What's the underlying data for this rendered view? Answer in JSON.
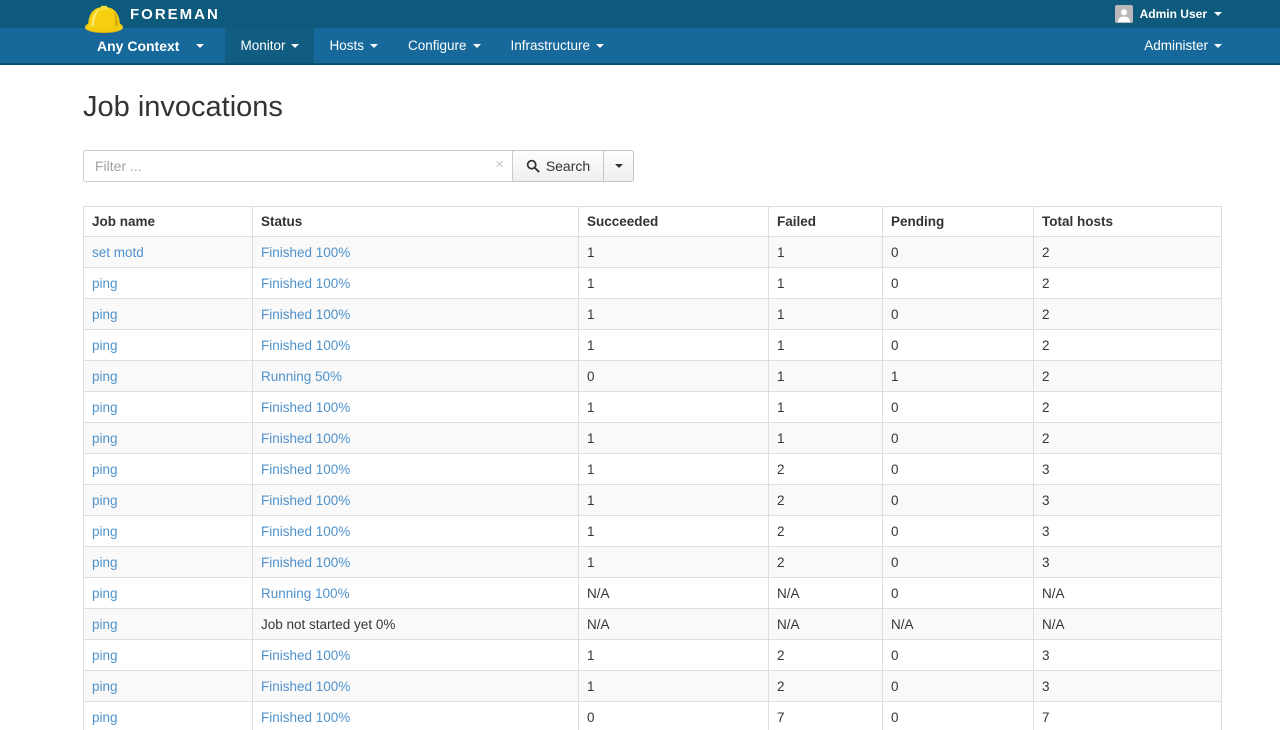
{
  "colors": {
    "topbar_bg": "#0d5a7d",
    "navbar_bg": "#17699b",
    "navbar_active_bg": "#115c81",
    "link_color": "#4f92cb",
    "logo_yellow": "#f6d00f"
  },
  "brand": {
    "name": "FOREMAN",
    "logo_icon": "hard-hat-icon"
  },
  "topbar": {
    "user_name": "Admin User"
  },
  "navbar": {
    "context_label": "Any Context",
    "items": [
      {
        "label": "Monitor",
        "active": true
      },
      {
        "label": "Hosts",
        "active": false
      },
      {
        "label": "Configure",
        "active": false
      },
      {
        "label": "Infrastructure",
        "active": false
      }
    ],
    "right_item": "Administer"
  },
  "page": {
    "title": "Job invocations"
  },
  "search": {
    "placeholder": "Filter ...",
    "button_label": "Search",
    "clear_icon": "×"
  },
  "table": {
    "columns": [
      "Job name",
      "Status",
      "Succeeded",
      "Failed",
      "Pending",
      "Total hosts"
    ],
    "rows": [
      {
        "job_name": "set motd",
        "status": "Finished 100%",
        "status_link": true,
        "succeeded": "1",
        "failed": "1",
        "pending": "0",
        "total_hosts": "2"
      },
      {
        "job_name": "ping",
        "status": "Finished 100%",
        "status_link": true,
        "succeeded": "1",
        "failed": "1",
        "pending": "0",
        "total_hosts": "2"
      },
      {
        "job_name": "ping",
        "status": "Finished 100%",
        "status_link": true,
        "succeeded": "1",
        "failed": "1",
        "pending": "0",
        "total_hosts": "2"
      },
      {
        "job_name": "ping",
        "status": "Finished 100%",
        "status_link": true,
        "succeeded": "1",
        "failed": "1",
        "pending": "0",
        "total_hosts": "2"
      },
      {
        "job_name": "ping",
        "status": "Running 50%",
        "status_link": true,
        "succeeded": "0",
        "failed": "1",
        "pending": "1",
        "total_hosts": "2"
      },
      {
        "job_name": "ping",
        "status": "Finished 100%",
        "status_link": true,
        "succeeded": "1",
        "failed": "1",
        "pending": "0",
        "total_hosts": "2"
      },
      {
        "job_name": "ping",
        "status": "Finished 100%",
        "status_link": true,
        "succeeded": "1",
        "failed": "1",
        "pending": "0",
        "total_hosts": "2"
      },
      {
        "job_name": "ping",
        "status": "Finished 100%",
        "status_link": true,
        "succeeded": "1",
        "failed": "2",
        "pending": "0",
        "total_hosts": "3"
      },
      {
        "job_name": "ping",
        "status": "Finished 100%",
        "status_link": true,
        "succeeded": "1",
        "failed": "2",
        "pending": "0",
        "total_hosts": "3"
      },
      {
        "job_name": "ping",
        "status": "Finished 100%",
        "status_link": true,
        "succeeded": "1",
        "failed": "2",
        "pending": "0",
        "total_hosts": "3"
      },
      {
        "job_name": "ping",
        "status": "Finished 100%",
        "status_link": true,
        "succeeded": "1",
        "failed": "2",
        "pending": "0",
        "total_hosts": "3"
      },
      {
        "job_name": "ping",
        "status": "Running 100%",
        "status_link": true,
        "succeeded": "N/A",
        "failed": "N/A",
        "pending": "0",
        "total_hosts": "N/A"
      },
      {
        "job_name": "ping",
        "status": "Job not started yet 0%",
        "status_link": false,
        "succeeded": "N/A",
        "failed": "N/A",
        "pending": "N/A",
        "total_hosts": "N/A"
      },
      {
        "job_name": "ping",
        "status": "Finished 100%",
        "status_link": true,
        "succeeded": "1",
        "failed": "2",
        "pending": "0",
        "total_hosts": "3"
      },
      {
        "job_name": "ping",
        "status": "Finished 100%",
        "status_link": true,
        "succeeded": "1",
        "failed": "2",
        "pending": "0",
        "total_hosts": "3"
      },
      {
        "job_name": "ping",
        "status": "Finished 100%",
        "status_link": true,
        "succeeded": "0",
        "failed": "7",
        "pending": "0",
        "total_hosts": "7"
      }
    ]
  }
}
